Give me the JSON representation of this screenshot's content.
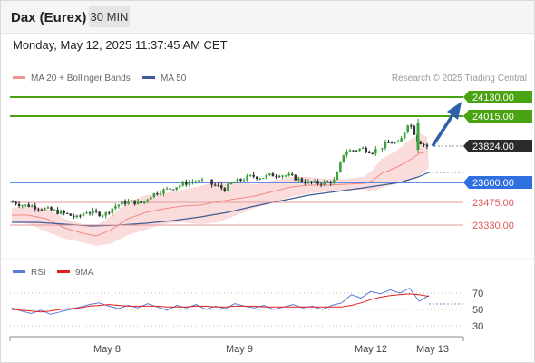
{
  "header": {
    "title": "Dax (Eurex)",
    "timeframe": "30 MIN"
  },
  "timestamp": "Monday, May 12, 2025 11:37:45 AM CET",
  "legend": {
    "items": [
      {
        "label": "MA 20 + Bollinger Bands",
        "color": "#f0928e"
      },
      {
        "label": "MA 50",
        "color": "#3f5b94"
      }
    ],
    "credit": "Research © 2025 Trading Central"
  },
  "colors": {
    "resistance": "#4aa310",
    "support": "#2f6fe0",
    "support_minor": "#e05a5a",
    "last_price": "#2b2b2b",
    "up_candle": "#2e8b2e",
    "down_candle": "#222222",
    "band_fill": "#fbdcdc",
    "rsi": "#5b79d6",
    "rsi_ma": "#e02020",
    "arrow": "#2f5fa8"
  },
  "price_levels": [
    {
      "label": "24130.00",
      "type": "resistance"
    },
    {
      "label": "24015.00",
      "type": "resistance"
    },
    {
      "label": "23824.00",
      "type": "last_price"
    },
    {
      "label": "23600.00",
      "type": "support"
    },
    {
      "label": "23475.00",
      "type": "support_minor"
    },
    {
      "label": "23330.00",
      "type": "support_minor"
    }
  ],
  "rsi_legend": {
    "rsi_label": "RSI",
    "ma_label": "9MA"
  },
  "rsi_ticks": [
    "70",
    "50",
    "30"
  ],
  "x_ticks": [
    "May 8",
    "May 9",
    "May 12",
    "May 13"
  ],
  "chart_data": {
    "type": "candlestick",
    "price_path": [
      23480,
      23460,
      23455,
      23440,
      23430,
      23415,
      23400,
      23380,
      23420,
      23410,
      23400,
      23450,
      23475,
      23480,
      23470,
      23520,
      23545,
      23560,
      23580,
      23600,
      23610,
      23600,
      23580,
      23560,
      23600,
      23620,
      23640,
      23630,
      23645,
      23650,
      23640,
      23620,
      23600,
      23595,
      23600,
      23610,
      23790,
      23800,
      23810,
      23790,
      23820,
      23850,
      23840,
      23980,
      23860,
      23824
    ],
    "rsi_path": [
      52,
      48,
      45,
      49,
      44,
      47,
      50,
      53,
      56,
      58,
      54,
      51,
      55,
      52,
      57,
      53,
      49,
      55,
      52,
      56,
      50,
      54,
      51,
      57,
      54,
      52,
      55,
      50,
      53,
      56,
      52,
      54,
      50,
      55,
      58,
      68,
      64,
      72,
      69,
      74,
      70,
      76,
      60,
      67
    ],
    "rsi_ma_path": [
      50,
      49,
      48,
      47,
      48,
      50,
      51,
      52,
      54,
      55,
      56,
      55,
      54,
      54,
      54,
      54,
      53,
      53,
      53,
      54,
      54,
      53,
      53,
      54,
      54,
      54,
      53,
      53,
      53,
      53,
      53,
      53,
      53,
      53,
      53,
      55,
      58,
      62,
      65,
      67,
      68,
      69,
      68,
      66
    ]
  }
}
